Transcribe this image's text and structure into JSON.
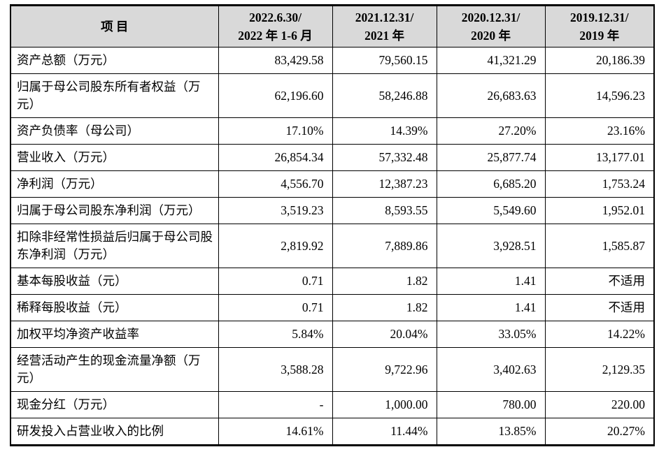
{
  "table": {
    "header_bg": "#d9d9d9",
    "border_color": "#000000",
    "text_color": "#000000",
    "columns": [
      {
        "line1": "项 目",
        "line2": ""
      },
      {
        "line1": "2022.6.30/",
        "line2": "2022 年 1-6 月"
      },
      {
        "line1": "2021.12.31/",
        "line2": "2021 年"
      },
      {
        "line1": "2020.12.31/",
        "line2": "2020 年"
      },
      {
        "line1": "2019.12.31/",
        "line2": "2019 年"
      }
    ],
    "rows": [
      {
        "label": "资产总额（万元）",
        "values": [
          "83,429.58",
          "79,560.15",
          "41,321.29",
          "20,186.39"
        ]
      },
      {
        "label": "归属于母公司股东所有者权益（万元）",
        "values": [
          "62,196.60",
          "58,246.88",
          "26,683.63",
          "14,596.23"
        ]
      },
      {
        "label": "资产负债率（母公司）",
        "values": [
          "17.10%",
          "14.39%",
          "27.20%",
          "23.16%"
        ]
      },
      {
        "label": "营业收入（万元）",
        "values": [
          "26,854.34",
          "57,332.48",
          "25,877.74",
          "13,177.01"
        ]
      },
      {
        "label": "净利润（万元）",
        "values": [
          "4,556.70",
          "12,387.23",
          "6,685.20",
          "1,753.24"
        ]
      },
      {
        "label": "归属于母公司股东净利润（万元）",
        "values": [
          "3,519.23",
          "8,593.55",
          "5,549.60",
          "1,952.01"
        ]
      },
      {
        "label": "扣除非经常性损益后归属于母公司股东净利润（万元）",
        "values": [
          "2,819.92",
          "7,889.86",
          "3,928.51",
          "1,585.87"
        ]
      },
      {
        "label": "基本每股收益（元）",
        "values": [
          "0.71",
          "1.82",
          "1.41",
          "不适用"
        ]
      },
      {
        "label": "稀释每股收益（元）",
        "values": [
          "0.71",
          "1.82",
          "1.41",
          "不适用"
        ]
      },
      {
        "label": "加权平均净资产收益率",
        "values": [
          "5.84%",
          "20.04%",
          "33.05%",
          "14.22%"
        ]
      },
      {
        "label": "经营活动产生的现金流量净额（万元）",
        "values": [
          "3,588.28",
          "9,722.96",
          "3,402.63",
          "2,129.35"
        ]
      },
      {
        "label": "现金分红（万元）",
        "values": [
          "-",
          "1,000.00",
          "780.00",
          "220.00"
        ]
      },
      {
        "label": "研发投入占营业收入的比例",
        "values": [
          "14.61%",
          "11.44%",
          "13.85%",
          "20.27%"
        ]
      }
    ]
  }
}
